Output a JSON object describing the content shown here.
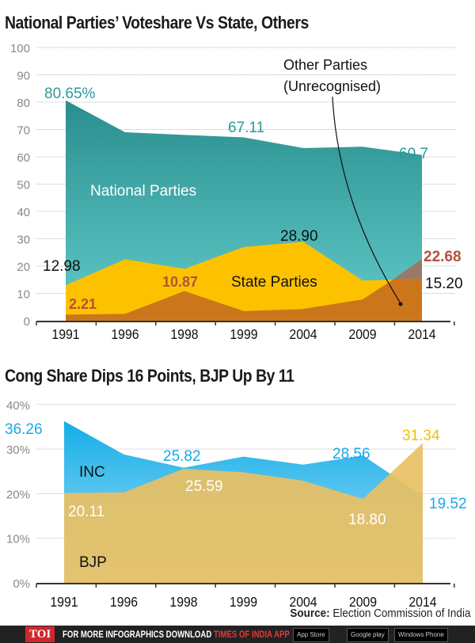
{
  "titles": {
    "top": "National Parties’ Voteshare Vs State, Others",
    "bottom": "Cong Share Dips 16 Points, BJP Up By 11"
  },
  "colors": {
    "national": "#3aa6a6",
    "state": "#fcc200",
    "other": "#cc761c",
    "brown": "#9a7a66",
    "inc": "#22b4ec",
    "bjp": "#e9c063",
    "teal_label": "#2a9a9a",
    "red_label": "#b5513a",
    "blue_label": "#1aa8e8",
    "yellow_label": "#f5bf00"
  },
  "chart_data": [
    {
      "type": "area",
      "stacked": true,
      "categories": [
        "1991",
        "1996",
        "1998",
        "1999",
        "2004",
        "2009",
        "2014"
      ],
      "ylim": [
        0,
        100
      ],
      "yticks": [
        "0",
        "10",
        "20",
        "30",
        "40",
        "50",
        "60",
        "70",
        "80",
        "90",
        "100"
      ],
      "grid": true,
      "series": [
        {
          "name": "National Parties",
          "values": [
            80.65,
            69,
            68,
            67.11,
            63.2,
            63.7,
            60.7
          ]
        },
        {
          "name": "State Parties",
          "values": [
            12.98,
            22.5,
            19,
            27,
            28.9,
            14.7,
            22.68
          ]
        },
        {
          "name": "Other Parties (Unrecognised)",
          "values": [
            2.21,
            2.5,
            10.87,
            3.5,
            4.3,
            7.8,
            15.2
          ]
        }
      ],
      "annotations": {
        "national_1991": "80.65%",
        "national_1999": "67.11",
        "national_2014": "60.7",
        "state_1991": "12.98",
        "state_2004": "28.90",
        "state_2014": "22.68",
        "other_1991": "2.21",
        "other_1998": "10.87",
        "other_2014": "15.20",
        "national_label": "National Parties",
        "state_label": "State Parties",
        "other_label_1": "Other Parties",
        "other_label_2": "(Unrecognised)"
      }
    },
    {
      "type": "area",
      "categories": [
        "1991",
        "1996",
        "1998",
        "1999",
        "2004",
        "2009",
        "2014"
      ],
      "ylim": [
        0,
        40
      ],
      "yticks": [
        "0%",
        "10%",
        "20%",
        "30%",
        "40%"
      ],
      "grid": true,
      "series": [
        {
          "name": "INC",
          "values": [
            36.26,
            28.8,
            25.82,
            28.3,
            26.5,
            28.56,
            19.52
          ]
        },
        {
          "name": "BJP",
          "values": [
            20.11,
            20.3,
            25.59,
            24.8,
            22.9,
            18.8,
            31.34
          ]
        }
      ],
      "annotations": {
        "inc_1991": "36.26",
        "inc_1998": "25.82",
        "inc_2009": "28.56",
        "inc_2014": "19.52",
        "bjp_1991": "20.11",
        "bjp_1998": "25.59",
        "bjp_2009": "18.80",
        "bjp_2014": "31.34",
        "inc_label": "INC",
        "bjp_label": "BJP"
      }
    }
  ],
  "source": {
    "label": "Source:",
    "text": "Election Commission of India"
  },
  "footer": {
    "logo": "TOI",
    "text1": "FOR MORE  INFOGRAPHICS DOWNLOAD",
    "text2": "TIMES OF INDIA APP",
    "badges": [
      "App Store",
      "Google play",
      "Windows Phone"
    ]
  }
}
